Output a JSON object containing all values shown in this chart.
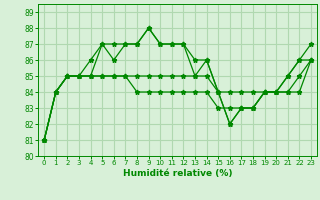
{
  "xlabel": "Humidité relative (%)",
  "xlim": [
    -0.5,
    23.5
  ],
  "ylim": [
    80,
    89.5
  ],
  "yticks": [
    80,
    81,
    82,
    83,
    84,
    85,
    86,
    87,
    88,
    89
  ],
  "xticks": [
    0,
    1,
    2,
    3,
    4,
    5,
    6,
    7,
    8,
    9,
    10,
    11,
    12,
    13,
    14,
    15,
    16,
    17,
    18,
    19,
    20,
    21,
    22,
    23
  ],
  "background_color": "#d8f0d8",
  "grid_color": "#b0d8b0",
  "line_color": "#008800",
  "series": [
    {
      "x": [
        0,
        1,
        2,
        3,
        4,
        5,
        6,
        7,
        8,
        9,
        10,
        11,
        12,
        13,
        14,
        15,
        16,
        17,
        18,
        19,
        20,
        21,
        22,
        23
      ],
      "y": [
        81,
        84,
        85,
        85,
        86,
        87,
        86,
        87,
        87,
        88,
        87,
        87,
        87,
        86,
        86,
        84,
        82,
        83,
        83,
        84,
        84,
        85,
        86,
        86
      ]
    },
    {
      "x": [
        0,
        1,
        2,
        3,
        4,
        5,
        6,
        7,
        8,
        9,
        10,
        11,
        12,
        13,
        14,
        15,
        16,
        17,
        18,
        19,
        20,
        21,
        22,
        23
      ],
      "y": [
        81,
        84,
        85,
        85,
        85,
        87,
        87,
        87,
        87,
        88,
        87,
        87,
        87,
        85,
        86,
        84,
        82,
        83,
        83,
        84,
        84,
        85,
        86,
        87
      ]
    },
    {
      "x": [
        0,
        1,
        2,
        3,
        4,
        5,
        6,
        7,
        8,
        9,
        10,
        11,
        12,
        13,
        14,
        15,
        16,
        17,
        18,
        19,
        20,
        21,
        22,
        23
      ],
      "y": [
        81,
        84,
        85,
        85,
        85,
        85,
        85,
        85,
        85,
        85,
        85,
        85,
        85,
        85,
        85,
        84,
        84,
        84,
        84,
        84,
        84,
        84,
        85,
        86
      ]
    },
    {
      "x": [
        0,
        1,
        2,
        3,
        4,
        5,
        6,
        7,
        8,
        9,
        10,
        11,
        12,
        13,
        14,
        15,
        16,
        17,
        18,
        19,
        20,
        21,
        22,
        23
      ],
      "y": [
        81,
        84,
        85,
        85,
        85,
        85,
        85,
        85,
        84,
        84,
        84,
        84,
        84,
        84,
        84,
        83,
        83,
        83,
        83,
        84,
        84,
        84,
        84,
        86
      ]
    }
  ]
}
